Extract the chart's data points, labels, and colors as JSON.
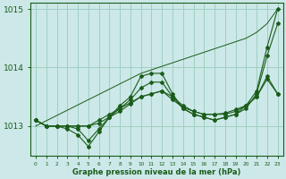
{
  "background_color": "#cce8e8",
  "grid_color": "#99ccbb",
  "line_color": "#1a5c1a",
  "marker_color": "#1a5c1a",
  "xlabel": "Graphe pression niveau de la mer (hPa)",
  "xlim": [
    0,
    23
  ],
  "ylim": [
    1012.5,
    1015.1
  ],
  "yticks": [
    1013,
    1014,
    1015
  ],
  "xticks": [
    0,
    1,
    2,
    3,
    4,
    5,
    6,
    7,
    8,
    9,
    10,
    11,
    12,
    13,
    14,
    15,
    16,
    17,
    18,
    19,
    20,
    21,
    22,
    23
  ],
  "series1": [
    1013.1,
    1013.0,
    1013.0,
    1012.95,
    1012.85,
    1012.65,
    1012.9,
    1013.15,
    1013.35,
    1013.5,
    1013.85,
    1013.9,
    1013.9,
    1013.55,
    1013.3,
    1013.2,
    1013.15,
    1013.1,
    1013.15,
    1013.2,
    1013.35,
    1013.6,
    1014.35,
    1015.0
  ],
  "series2": [
    1013.1,
    1013.0,
    1013.0,
    1013.0,
    1013.0,
    1013.0,
    1013.1,
    1013.2,
    1013.3,
    1013.4,
    1013.5,
    1013.55,
    1013.6,
    1013.5,
    1013.35,
    1013.25,
    1013.2,
    1013.2,
    1013.2,
    1013.25,
    1013.35,
    1013.5,
    1013.85,
    1013.55
  ],
  "series3": [
    1013.1,
    1013.0,
    1013.0,
    1013.0,
    1012.95,
    1012.75,
    1012.95,
    1013.15,
    1013.3,
    1013.45,
    1013.65,
    1013.75,
    1013.75,
    1013.5,
    1013.3,
    1013.2,
    1013.15,
    1013.1,
    1013.15,
    1013.2,
    1013.3,
    1013.55,
    1014.2,
    1014.75
  ],
  "series4": [
    1013.1,
    1013.0,
    1013.0,
    1013.0,
    1013.0,
    1013.0,
    1013.05,
    1013.15,
    1013.25,
    1013.38,
    1013.5,
    1013.55,
    1013.6,
    1013.45,
    1013.32,
    1013.25,
    1013.2,
    1013.2,
    1013.22,
    1013.28,
    1013.35,
    1013.5,
    1013.8,
    1013.55
  ],
  "trend": [
    1013.0,
    1013.09,
    1013.18,
    1013.27,
    1013.36,
    1013.45,
    1013.54,
    1013.63,
    1013.72,
    1013.81,
    1013.9,
    1013.96,
    1014.02,
    1014.08,
    1014.14,
    1014.2,
    1014.26,
    1014.32,
    1014.38,
    1014.44,
    1014.5,
    1014.6,
    1014.75,
    1015.0
  ]
}
